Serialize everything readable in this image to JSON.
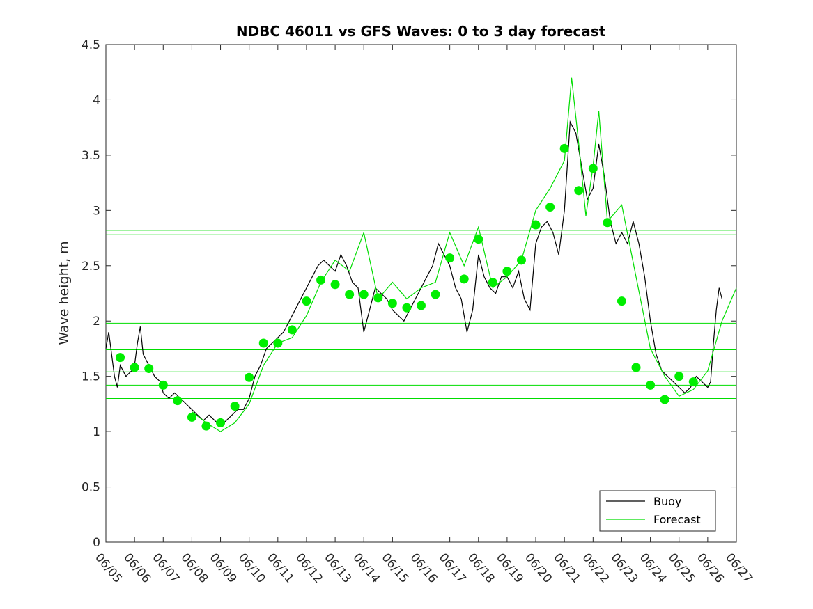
{
  "chart_data": {
    "type": "line",
    "title": "NDBC 46011 vs GFS Waves: 0 to 3 day forecast",
    "xlabel": "",
    "ylabel": "Wave height, m",
    "xlim": [
      0,
      22
    ],
    "ylim": [
      0,
      4.5
    ],
    "yticks": [
      0,
      0.5,
      1,
      1.5,
      2,
      2.5,
      3,
      3.5,
      4,
      4.5
    ],
    "xtick_labels": [
      "06/05",
      "06/06",
      "06/07",
      "06/08",
      "06/09",
      "06/10",
      "06/11",
      "06/12",
      "06/13",
      "06/14",
      "06/15",
      "06/16",
      "06/17",
      "06/18",
      "06/19",
      "06/20",
      "06/21",
      "06/22",
      "06/23",
      "06/24",
      "06/25",
      "06/26",
      "06/27"
    ],
    "x_unit": "days since 06/05 00:00",
    "grid": false,
    "legend_position": "bottom-right",
    "series": [
      {
        "name": "Buoy",
        "color": "#000000",
        "points": [
          [
            0,
            1.75
          ],
          [
            0.1,
            1.9
          ],
          [
            0.2,
            1.7
          ],
          [
            0.3,
            1.5
          ],
          [
            0.4,
            1.4
          ],
          [
            0.5,
            1.6
          ],
          [
            0.7,
            1.5
          ],
          [
            0.9,
            1.55
          ],
          [
            1.0,
            1.6
          ],
          [
            1.1,
            1.8
          ],
          [
            1.2,
            1.95
          ],
          [
            1.3,
            1.7
          ],
          [
            1.5,
            1.6
          ],
          [
            1.7,
            1.5
          ],
          [
            1.9,
            1.45
          ],
          [
            2.0,
            1.35
          ],
          [
            2.2,
            1.3
          ],
          [
            2.4,
            1.35
          ],
          [
            2.6,
            1.3
          ],
          [
            2.8,
            1.25
          ],
          [
            3.0,
            1.2
          ],
          [
            3.2,
            1.15
          ],
          [
            3.4,
            1.1
          ],
          [
            3.6,
            1.15
          ],
          [
            3.8,
            1.1
          ],
          [
            4.0,
            1.05
          ],
          [
            4.2,
            1.1
          ],
          [
            4.4,
            1.15
          ],
          [
            4.6,
            1.2
          ],
          [
            4.8,
            1.2
          ],
          [
            5.0,
            1.3
          ],
          [
            5.2,
            1.5
          ],
          [
            5.4,
            1.6
          ],
          [
            5.6,
            1.75
          ],
          [
            5.8,
            1.8
          ],
          [
            6.0,
            1.85
          ],
          [
            6.2,
            1.9
          ],
          [
            6.4,
            2.0
          ],
          [
            6.6,
            2.1
          ],
          [
            6.8,
            2.2
          ],
          [
            7.0,
            2.3
          ],
          [
            7.2,
            2.4
          ],
          [
            7.4,
            2.5
          ],
          [
            7.6,
            2.55
          ],
          [
            7.8,
            2.5
          ],
          [
            8.0,
            2.45
          ],
          [
            8.2,
            2.6
          ],
          [
            8.4,
            2.5
          ],
          [
            8.6,
            2.35
          ],
          [
            8.8,
            2.3
          ],
          [
            9.0,
            1.9
          ],
          [
            9.2,
            2.1
          ],
          [
            9.4,
            2.3
          ],
          [
            9.6,
            2.25
          ],
          [
            9.8,
            2.2
          ],
          [
            10.0,
            2.1
          ],
          [
            10.2,
            2.05
          ],
          [
            10.4,
            2.0
          ],
          [
            10.6,
            2.1
          ],
          [
            10.8,
            2.2
          ],
          [
            11.0,
            2.3
          ],
          [
            11.2,
            2.4
          ],
          [
            11.4,
            2.5
          ],
          [
            11.6,
            2.7
          ],
          [
            11.8,
            2.6
          ],
          [
            12.0,
            2.5
          ],
          [
            12.2,
            2.3
          ],
          [
            12.4,
            2.2
          ],
          [
            12.6,
            1.9
          ],
          [
            12.8,
            2.1
          ],
          [
            13.0,
            2.6
          ],
          [
            13.2,
            2.4
          ],
          [
            13.4,
            2.3
          ],
          [
            13.6,
            2.25
          ],
          [
            13.8,
            2.4
          ],
          [
            14.0,
            2.4
          ],
          [
            14.2,
            2.3
          ],
          [
            14.4,
            2.45
          ],
          [
            14.6,
            2.2
          ],
          [
            14.8,
            2.1
          ],
          [
            15.0,
            2.7
          ],
          [
            15.2,
            2.85
          ],
          [
            15.4,
            2.9
          ],
          [
            15.6,
            2.8
          ],
          [
            15.8,
            2.6
          ],
          [
            16.0,
            3.0
          ],
          [
            16.2,
            3.8
          ],
          [
            16.4,
            3.7
          ],
          [
            16.6,
            3.4
          ],
          [
            16.8,
            3.1
          ],
          [
            17.0,
            3.2
          ],
          [
            17.2,
            3.6
          ],
          [
            17.4,
            3.3
          ],
          [
            17.6,
            2.9
          ],
          [
            17.8,
            2.7
          ],
          [
            18.0,
            2.8
          ],
          [
            18.2,
            2.7
          ],
          [
            18.4,
            2.9
          ],
          [
            18.6,
            2.7
          ],
          [
            18.8,
            2.4
          ],
          [
            19.0,
            2.0
          ],
          [
            19.2,
            1.7
          ],
          [
            19.4,
            1.55
          ],
          [
            19.6,
            1.5
          ],
          [
            19.8,
            1.45
          ],
          [
            20.0,
            1.4
          ],
          [
            20.2,
            1.35
          ],
          [
            20.4,
            1.4
          ],
          [
            20.6,
            1.5
          ],
          [
            20.8,
            1.45
          ],
          [
            21.0,
            1.4
          ],
          [
            21.1,
            1.45
          ],
          [
            21.2,
            1.8
          ],
          [
            21.3,
            2.1
          ],
          [
            21.4,
            2.3
          ],
          [
            21.5,
            2.2
          ]
        ]
      },
      {
        "name": "Forecast",
        "color": "#00dd00",
        "points": [
          [
            3.0,
            1.18
          ],
          [
            3.5,
            1.08
          ],
          [
            4.0,
            1.0
          ],
          [
            4.5,
            1.08
          ],
          [
            5.0,
            1.25
          ],
          [
            5.5,
            1.6
          ],
          [
            6.0,
            1.8
          ],
          [
            6.5,
            1.85
          ],
          [
            7.0,
            2.05
          ],
          [
            7.5,
            2.35
          ],
          [
            8.0,
            2.55
          ],
          [
            8.5,
            2.45
          ],
          [
            9.0,
            2.8
          ],
          [
            9.5,
            2.2
          ],
          [
            10.0,
            2.35
          ],
          [
            10.5,
            2.2
          ],
          [
            11.0,
            2.3
          ],
          [
            11.5,
            2.35
          ],
          [
            12.0,
            2.8
          ],
          [
            12.5,
            2.5
          ],
          [
            13.0,
            2.85
          ],
          [
            13.5,
            2.3
          ],
          [
            14.0,
            2.4
          ],
          [
            14.5,
            2.55
          ],
          [
            15.0,
            3.0
          ],
          [
            15.5,
            3.2
          ],
          [
            16.0,
            3.45
          ],
          [
            16.25,
            4.2
          ],
          [
            16.5,
            3.6
          ],
          [
            16.75,
            2.95
          ],
          [
            17.0,
            3.4
          ],
          [
            17.2,
            3.9
          ],
          [
            17.5,
            2.9
          ],
          [
            18.0,
            3.05
          ],
          [
            18.5,
            2.4
          ],
          [
            19.0,
            1.75
          ],
          [
            19.5,
            1.5
          ],
          [
            20.0,
            1.32
          ],
          [
            20.5,
            1.38
          ],
          [
            21.0,
            1.55
          ],
          [
            21.5,
            2.0
          ],
          [
            22.0,
            2.3
          ]
        ]
      },
      {
        "name": "Forecast points",
        "color": "#00ee00",
        "points": [
          [
            0.5,
            1.67
          ],
          [
            1.0,
            1.58
          ],
          [
            1.5,
            1.57
          ],
          [
            2.0,
            1.42
          ],
          [
            2.5,
            1.28
          ],
          [
            3.0,
            1.13
          ],
          [
            3.5,
            1.05
          ],
          [
            4.0,
            1.08
          ],
          [
            4.5,
            1.23
          ],
          [
            5.0,
            1.49
          ],
          [
            5.5,
            1.8
          ],
          [
            6.0,
            1.8
          ],
          [
            6.5,
            1.92
          ],
          [
            7.0,
            2.18
          ],
          [
            7.5,
            2.37
          ],
          [
            8.0,
            2.33
          ],
          [
            8.5,
            2.24
          ],
          [
            9.0,
            2.24
          ],
          [
            9.5,
            2.21
          ],
          [
            10.0,
            2.16
          ],
          [
            10.5,
            2.12
          ],
          [
            11.0,
            2.14
          ],
          [
            11.5,
            2.24
          ],
          [
            12.0,
            2.57
          ],
          [
            12.5,
            2.38
          ],
          [
            13.0,
            2.74
          ],
          [
            13.5,
            2.35
          ],
          [
            14.0,
            2.45
          ],
          [
            14.5,
            2.55
          ],
          [
            15.0,
            2.87
          ],
          [
            15.5,
            3.03
          ],
          [
            16.0,
            3.56
          ],
          [
            16.5,
            3.18
          ],
          [
            17.0,
            3.38
          ],
          [
            17.5,
            2.89
          ],
          [
            18.0,
            2.18
          ],
          [
            18.5,
            1.58
          ],
          [
            19.0,
            1.42
          ],
          [
            19.5,
            1.29
          ],
          [
            20.0,
            1.5
          ],
          [
            20.5,
            1.45
          ]
        ]
      }
    ],
    "reference_lines_y": [
      2.82,
      2.78,
      1.98,
      1.74,
      1.54,
      1.42,
      1.3
    ],
    "legend": [
      "Buoy",
      "Forecast"
    ]
  }
}
